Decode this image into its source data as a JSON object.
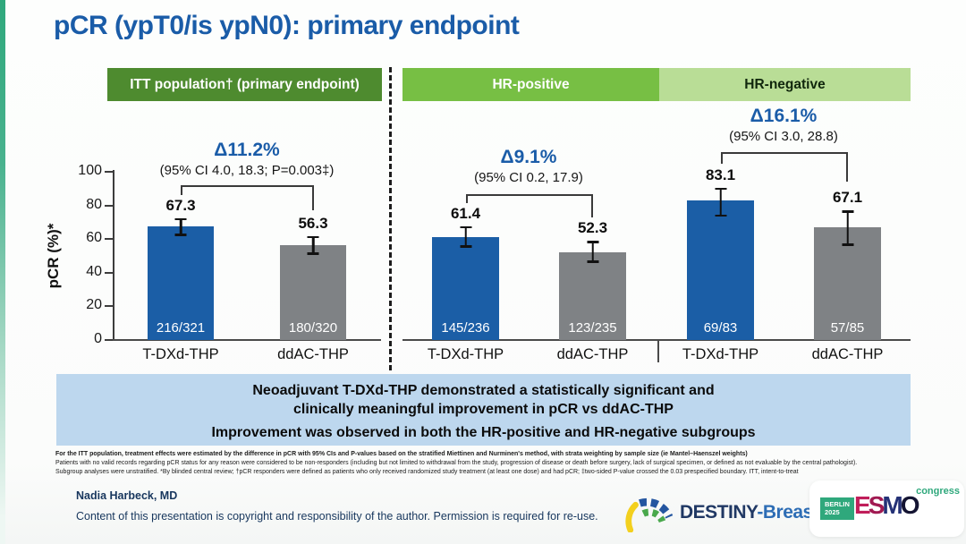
{
  "title": "pCR (ypT0/is ypN0): primary endpoint",
  "colors": {
    "title_blue": "#1a5ca8",
    "bar_blue": "#1b5ea6",
    "bar_gray": "#7f8285",
    "itt_header_green": "#4e8b2f",
    "hr_positive_green": "#77bf44",
    "hr_negative_green": "#b9dd96",
    "banner_blue": "#bdd7ee"
  },
  "chart_data": {
    "type": "bar",
    "ylabel": "pCR (%)*",
    "ylim": [
      0,
      100
    ],
    "yticks": [
      0,
      20,
      40,
      60,
      80,
      100
    ],
    "grid": false,
    "groups": [
      {
        "name": "ITT population† (primary endpoint)",
        "delta": "Δ11.2%",
        "ci": "(95% CI 4.0, 18.3; P=0.003‡)",
        "bars": [
          {
            "label": "T-DXd-THP",
            "value": 67.3,
            "n": "216/321",
            "err_low": 61.9,
            "err_high": 72.4,
            "color": "#1b5ea6"
          },
          {
            "label": "ddAC-THP",
            "value": 56.3,
            "n": "180/320",
            "err_low": 50.6,
            "err_high": 61.8,
            "color": "#7f8285"
          }
        ]
      },
      {
        "name": "HR-positive",
        "delta": "Δ9.1%",
        "ci": "(95% CI 0.2, 17.9)",
        "bars": [
          {
            "label": "T-DXd-THP",
            "value": 61.4,
            "n": "145/236",
            "err_low": 54.9,
            "err_high": 67.7,
            "color": "#1b5ea6"
          },
          {
            "label": "ddAC-THP",
            "value": 52.3,
            "n": "123/235",
            "err_low": 45.8,
            "err_high": 58.9,
            "color": "#7f8285"
          }
        ]
      },
      {
        "name": "HR-negative",
        "delta": "Δ16.1%",
        "ci": "(95% CI 3.0, 28.8)",
        "bars": [
          {
            "label": "T-DXd-THP",
            "value": 83.1,
            "n": "69/83",
            "err_low": 73.3,
            "err_high": 90.5,
            "color": "#1b5ea6"
          },
          {
            "label": "ddAC-THP",
            "value": 67.1,
            "n": "57/85",
            "err_low": 56.0,
            "err_high": 76.9,
            "color": "#7f8285"
          }
        ]
      }
    ]
  },
  "banner": {
    "line1": "Neoadjuvant T-DXd-THP demonstrated a statistically significant and",
    "line2": "clinically meaningful improvement in pCR vs ddAC-THP",
    "line3": "Improvement was observed in both the HR-positive and HR-negative subgroups"
  },
  "footnotes": [
    "For the ITT population, treatment effects were estimated by the difference in pCR with 95% CIs and P-values based on the stratified Miettinen and Nurminen's method, with strata weighting by sample size (ie Mantel–Haenszel weights)",
    "Patients with no valid records regarding pCR status for any reason were considered to be non-responders (including but not limited to withdrawal from the study, progression of disease or death before surgery, lack of surgical specimen, or defined as not evaluable by the central pathologist).",
    "Subgroup analyses were unstratified. *By blinded central review; †pCR responders were defined as patients who only received randomized study treatment (at least one dose) and had pCR; ‡two-sided P-value crossed the 0.03 prespecified boundary. ITT, intent-to-treat"
  ],
  "footer": {
    "author": "Nadia Harbeck, MD",
    "copyright": "Content of this presentation is copyright and responsibility of the author. Permission is required for re-use.",
    "destiny_logo": {
      "bold": "DESTINY",
      "rest": "-Breast11"
    },
    "esmo_logo": {
      "location": "BERLIN",
      "year": "2025",
      "letters": [
        "E",
        "S",
        "M",
        "O"
      ],
      "congress": "congress"
    }
  }
}
